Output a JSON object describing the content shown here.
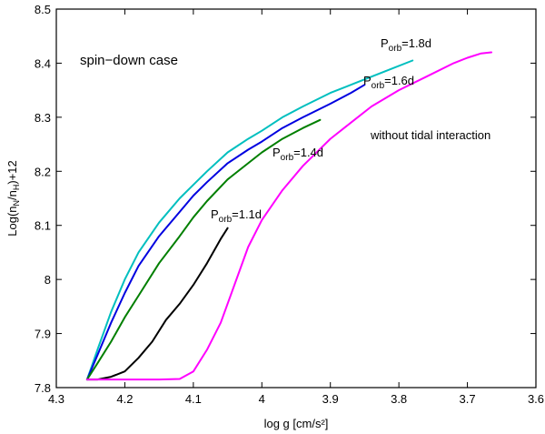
{
  "chart_data": {
    "type": "line",
    "title": "",
    "xlabel": "log g [cm/s²]",
    "ylabel": "Log(n_N/n_H)+12",
    "xlim": [
      4.3,
      3.6
    ],
    "ylim": [
      7.8,
      8.5
    ],
    "x_reversed": true,
    "grid": false,
    "xticks": [
      4.3,
      4.2,
      4.1,
      4.0,
      3.9,
      3.8,
      3.7,
      3.6
    ],
    "xtick_labels": [
      "4.3",
      "4.2",
      "4.1",
      "4",
      "3.9",
      "3.8",
      "3.7",
      "3.6"
    ],
    "yticks": [
      7.8,
      7.9,
      8.0,
      8.1,
      8.2,
      8.3,
      8.4,
      8.5
    ],
    "ytick_labels": [
      "7.8",
      "7.9",
      "8",
      "8.1",
      "8.2",
      "8.3",
      "8.4",
      "8.5"
    ],
    "annotation": "spin−down case",
    "series": [
      {
        "color": "#00bfbf",
        "label_base": "P",
        "label_sub": "orb",
        "label_value": "=1.8d",
        "x": [
          4.255,
          4.24,
          4.22,
          4.2,
          4.18,
          4.15,
          4.12,
          4.1,
          4.08,
          4.05,
          4.02,
          4.0,
          3.97,
          3.94,
          3.9,
          3.86,
          3.82,
          3.78
        ],
        "y": [
          7.815,
          7.87,
          7.94,
          8.0,
          8.05,
          8.105,
          8.15,
          8.175,
          8.2,
          8.235,
          8.26,
          8.275,
          8.3,
          8.32,
          8.345,
          8.365,
          8.385,
          8.405
        ]
      },
      {
        "color": "#0000e0",
        "label_base": "P",
        "label_sub": "orb",
        "label_value": "=1.6d",
        "x": [
          4.255,
          4.24,
          4.22,
          4.2,
          4.18,
          4.15,
          4.12,
          4.1,
          4.08,
          4.05,
          4.02,
          4.0,
          3.97,
          3.94,
          3.9,
          3.87,
          3.85
        ],
        "y": [
          7.815,
          7.86,
          7.92,
          7.975,
          8.025,
          8.08,
          8.125,
          8.155,
          8.18,
          8.215,
          8.24,
          8.255,
          8.28,
          8.3,
          8.325,
          8.345,
          8.36
        ]
      },
      {
        "color": "#007f00",
        "label_base": "P",
        "label_sub": "orb",
        "label_value": "=1.4d",
        "x": [
          4.255,
          4.24,
          4.22,
          4.2,
          4.18,
          4.15,
          4.12,
          4.1,
          4.08,
          4.05,
          4.02,
          4.0,
          3.97,
          3.94,
          3.915
        ],
        "y": [
          7.815,
          7.845,
          7.885,
          7.93,
          7.97,
          8.03,
          8.08,
          8.115,
          8.145,
          8.185,
          8.215,
          8.235,
          8.26,
          8.28,
          8.295
        ]
      },
      {
        "color": "#000000",
        "label_base": "P",
        "label_sub": "orb",
        "label_value": "=1.1d",
        "x": [
          4.255,
          4.24,
          4.22,
          4.2,
          4.18,
          4.16,
          4.14,
          4.12,
          4.1,
          4.08,
          4.06,
          4.05
        ],
        "y": [
          7.815,
          7.815,
          7.82,
          7.83,
          7.855,
          7.885,
          7.925,
          7.955,
          7.99,
          8.03,
          8.075,
          8.095
        ]
      },
      {
        "color": "#ff00ff",
        "label_base": "without tidal interaction",
        "label_sub": "",
        "label_value": "",
        "x": [
          4.255,
          4.2,
          4.15,
          4.12,
          4.1,
          4.08,
          4.06,
          4.04,
          4.02,
          4.0,
          3.97,
          3.94,
          3.9,
          3.87,
          3.84,
          3.8,
          3.76,
          3.72,
          3.7,
          3.68,
          3.665
        ],
        "y": [
          7.815,
          7.815,
          7.815,
          7.816,
          7.83,
          7.87,
          7.92,
          7.99,
          8.06,
          8.11,
          8.165,
          8.21,
          8.26,
          8.29,
          8.32,
          8.35,
          8.375,
          8.4,
          8.41,
          8.418,
          8.42
        ]
      }
    ]
  }
}
